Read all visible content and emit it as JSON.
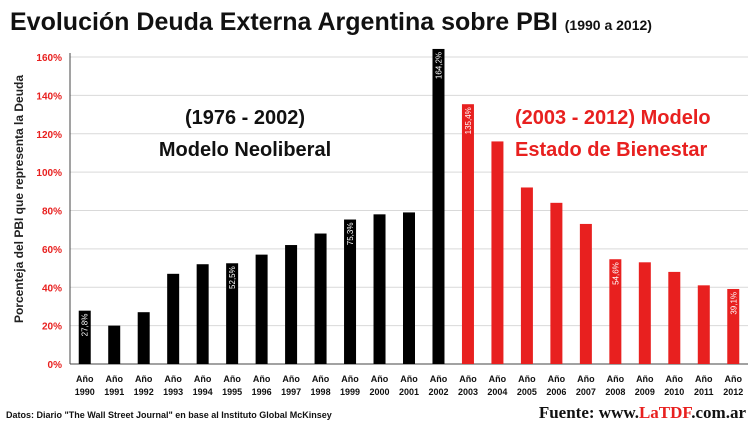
{
  "title": {
    "main": "Evolución Deuda Externa Argentina sobre PBI",
    "years": "(1990 a 2012)"
  },
  "annotations": {
    "left_line1": "(1976 - 2002)",
    "left_line2": "Modelo Neoliberal",
    "right_line1": "(2003 - 2012) Modelo",
    "right_line2": "Estado de Bienestar"
  },
  "footer": {
    "source": "Datos: Diario \"The Wall Street Journal\" en base al Instituto Global McKinsey",
    "fuente_prefix": "Fuente: www.",
    "fuente_brand": "LaTDF",
    "fuente_suffix": ".com.ar"
  },
  "colors": {
    "neoliberal": "#000000",
    "bienestar": "#e8201f",
    "axis_text": "#e8201f",
    "grid": "#d9d9d9"
  },
  "chart_data": {
    "type": "bar",
    "ylabel": "Porcenteja del PBI que representa la Deuda",
    "xlabel": "",
    "ylim": [
      0,
      160
    ],
    "yticks": [
      0,
      20,
      40,
      60,
      80,
      100,
      120,
      140,
      160
    ],
    "ytick_labels": [
      "0%",
      "20%",
      "40%",
      "60%",
      "80%",
      "100%",
      "120%",
      "140%",
      "160%"
    ],
    "grid": true,
    "categories": [
      [
        "Año",
        "1990"
      ],
      [
        "Año",
        "1991"
      ],
      [
        "Año",
        "1992"
      ],
      [
        "Año",
        "1993"
      ],
      [
        "Año",
        "1994"
      ],
      [
        "Año",
        "1995"
      ],
      [
        "Año",
        "1996"
      ],
      [
        "Año",
        "1997"
      ],
      [
        "Año",
        "1998"
      ],
      [
        "Año",
        "1999"
      ],
      [
        "Año",
        "2000"
      ],
      [
        "Año",
        "2001"
      ],
      [
        "Año",
        "2002"
      ],
      [
        "Año",
        "2003"
      ],
      [
        "Año",
        "2004"
      ],
      [
        "Año",
        "2005"
      ],
      [
        "Año",
        "2006"
      ],
      [
        "Año",
        "2007"
      ],
      [
        "Año",
        "2008"
      ],
      [
        "Año",
        "2009"
      ],
      [
        "Año",
        "2010"
      ],
      [
        "Año",
        "2011"
      ],
      [
        "Año",
        "2012"
      ]
    ],
    "values": [
      27.8,
      20,
      27,
      47,
      52,
      52.5,
      57,
      62,
      68,
      75.3,
      78,
      79,
      164.2,
      135.4,
      116,
      92,
      84,
      73,
      54.6,
      53,
      48,
      41,
      39.1
    ],
    "groups": [
      "neoliberal",
      "neoliberal",
      "neoliberal",
      "neoliberal",
      "neoliberal",
      "neoliberal",
      "neoliberal",
      "neoliberal",
      "neoliberal",
      "neoliberal",
      "neoliberal",
      "neoliberal",
      "neoliberal",
      "bienestar",
      "bienestar",
      "bienestar",
      "bienestar",
      "bienestar",
      "bienestar",
      "bienestar",
      "bienestar",
      "bienestar",
      "bienestar"
    ],
    "data_labels": {
      "0": "27,8%",
      "5": "52,5%",
      "9": "75,3%",
      "12": "164,2%",
      "13": "135,4%",
      "18": "54,6%",
      "22": "39,1%"
    }
  }
}
